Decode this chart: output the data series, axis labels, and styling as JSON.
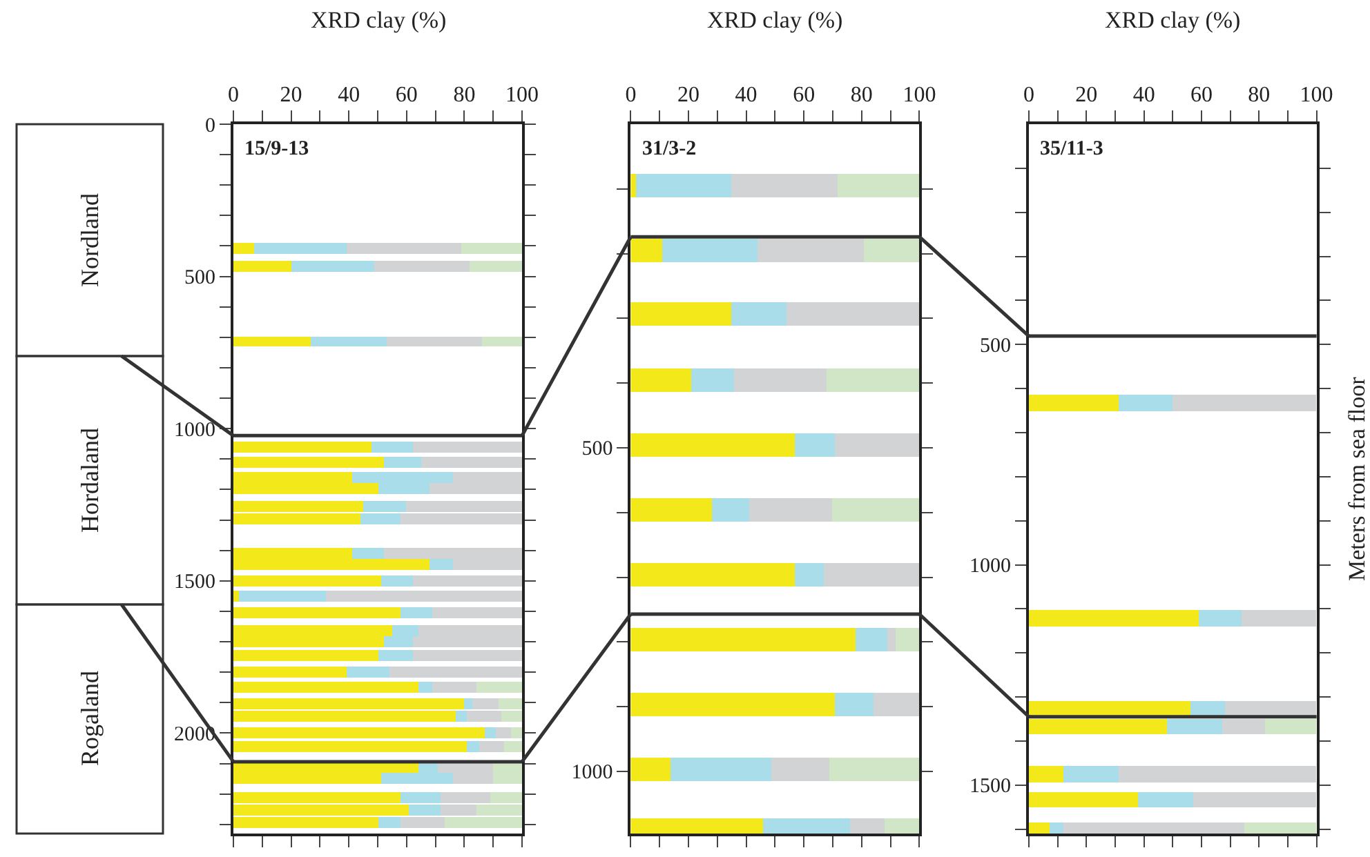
{
  "chart_data": [
    {
      "type": "bar",
      "orientation": "horizontal",
      "stacked": true,
      "title": "15/9-13",
      "xlabel": "XRD clay (%)",
      "annotations": [
        "Nordland",
        "Hordaland",
        "Rogaland"
      ],
      "x": [
        407,
        468,
        714,
        1060,
        1110,
        1160,
        1197,
        1256,
        1297,
        1409,
        1447,
        1500,
        1551,
        1603,
        1665,
        1701,
        1747,
        1799,
        1850,
        1902,
        1944,
        2000,
        2045,
        2112,
        2148,
        2214,
        2255,
        2292
      ],
      "series": [
        {
          "color": "#f2e81a",
          "values": [
            7,
            20,
            27,
            48,
            52,
            41,
            50,
            45,
            44,
            41,
            68,
            51,
            2,
            58,
            55,
            52,
            50,
            39,
            64,
            80,
            77,
            87,
            81,
            64,
            51,
            58,
            61,
            50
          ]
        },
        {
          "color": "#a8dde9",
          "values": [
            32,
            29,
            26,
            14,
            13,
            35,
            18,
            15,
            14,
            11,
            8,
            11,
            30,
            11,
            9,
            10,
            12,
            15,
            5,
            3,
            4,
            4,
            4,
            7,
            25,
            14,
            11,
            8
          ]
        },
        {
          "color": "#d2d3d5",
          "values": [
            40,
            33,
            33,
            38,
            35,
            24,
            32,
            40,
            42,
            48,
            24,
            38,
            68,
            31,
            36,
            38,
            38,
            46,
            15,
            9,
            12,
            5,
            9,
            19,
            14,
            17,
            12,
            15
          ]
        },
        {
          "color": "#d0e6c6",
          "values": [
            21,
            18,
            14,
            null,
            null,
            null,
            null,
            null,
            null,
            null,
            null,
            null,
            null,
            null,
            null,
            null,
            null,
            null,
            16,
            8,
            7,
            4,
            6,
            10,
            10,
            11,
            16,
            27
          ]
        }
      ],
      "xlim": [
        0,
        100
      ],
      "xticks": [
        0,
        {
          "value": 10,
          "label": null
        },
        20,
        {
          "value": 30,
          "label": null
        },
        40,
        {
          "value": 50,
          "label": null
        },
        60,
        {
          "value": 70,
          "label": null
        },
        80,
        {
          "value": 90,
          "label": null
        },
        100
      ],
      "ylim": [
        2330,
        0
      ],
      "yticks": [
        0,
        {
          "value": 100,
          "label": null
        },
        {
          "value": 200,
          "label": null
        },
        {
          "value": 300,
          "label": null
        },
        {
          "value": 400,
          "label": null
        },
        500,
        {
          "value": 600,
          "label": null
        },
        {
          "value": 700,
          "label": null
        },
        {
          "value": 800,
          "label": null
        },
        {
          "value": 900,
          "label": null
        },
        1000,
        {
          "value": 1100,
          "label": null
        },
        {
          "value": 1200,
          "label": null
        },
        {
          "value": 1300,
          "label": null
        },
        {
          "value": 1400,
          "label": null
        },
        1500,
        {
          "value": 1600,
          "label": null
        },
        {
          "value": 1700,
          "label": null
        },
        {
          "value": 1800,
          "label": null
        },
        {
          "value": 1900,
          "label": null
        },
        2000,
        {
          "value": 2100,
          "label": null
        },
        {
          "value": 2200,
          "label": null
        },
        {
          "value": 2300,
          "label": null
        }
      ],
      "ref_lines": [
        {
          "axis": "y",
          "value": 1023,
          "color": "#333333"
        },
        {
          "axis": "y",
          "value": 2094,
          "color": "#333333"
        }
      ]
    },
    {
      "type": "bar",
      "orientation": "horizontal",
      "stacked": true,
      "title": "31/3-2",
      "xlabel": "XRD clay (%)",
      "x": [
        94,
        196,
        294,
        396,
        495,
        596,
        696,
        796,
        896,
        997,
        1090
      ],
      "series": [
        {
          "color": "#f2e81a",
          "values": [
            2,
            11,
            35,
            21,
            57,
            28,
            57,
            78,
            71,
            14,
            46
          ]
        },
        {
          "color": "#a8dde9",
          "values": [
            33,
            33,
            19,
            15,
            14,
            13,
            10,
            11,
            13,
            35,
            30
          ]
        },
        {
          "color": "#d2d3d5",
          "values": [
            37,
            37,
            46,
            32,
            29,
            29,
            33,
            3,
            16,
            20,
            12
          ]
        },
        {
          "color": "#d0e6c6",
          "values": [
            28,
            19,
            null,
            32,
            null,
            30,
            null,
            8,
            null,
            31,
            12
          ]
        }
      ],
      "xlim": [
        0,
        100
      ],
      "xticks": [
        0,
        {
          "value": 10,
          "label": null
        },
        20,
        {
          "value": 30,
          "label": null
        },
        40,
        {
          "value": 50,
          "label": null
        },
        60,
        {
          "value": 70,
          "label": null
        },
        80,
        {
          "value": 90,
          "label": null
        },
        100
      ],
      "ylim": [
        1096,
        0
      ],
      "yticks": [
        {
          "value": 100,
          "label": null
        },
        {
          "value": 200,
          "label": null
        },
        {
          "value": 300,
          "label": null
        },
        {
          "value": 400,
          "label": null
        },
        500,
        {
          "value": 600,
          "label": null
        },
        {
          "value": 700,
          "label": null
        },
        {
          "value": 800,
          "label": null
        },
        {
          "value": 900,
          "label": null
        },
        1000
      ],
      "ref_lines": [
        {
          "axis": "y",
          "value": 174,
          "color": "#333333"
        },
        {
          "axis": "y",
          "value": 757,
          "color": "#333333"
        }
      ]
    },
    {
      "type": "bar",
      "orientation": "horizontal",
      "stacked": true,
      "title": "35/11-3",
      "xlabel": "XRD clay (%)",
      "ylabel": "Meters from sea floor",
      "x": [
        632,
        1121,
        1326,
        1368,
        1475,
        1534,
        1603
      ],
      "series": [
        {
          "color": "#f2e81a",
          "values": [
            31,
            59,
            56,
            48,
            12,
            38,
            7
          ]
        },
        {
          "color": "#a8dde9",
          "values": [
            19,
            15,
            12,
            19,
            19,
            19,
            5
          ]
        },
        {
          "color": "#d2d3d5",
          "values": [
            50,
            26,
            32,
            15,
            69,
            43,
            63
          ]
        },
        {
          "color": "#d0e6c6",
          "values": [
            null,
            null,
            null,
            18,
            null,
            null,
            25
          ]
        }
      ],
      "xlim": [
        0,
        100
      ],
      "xticks": [
        0,
        {
          "value": 10,
          "label": null
        },
        20,
        {
          "value": 30,
          "label": null
        },
        40,
        {
          "value": 50,
          "label": null
        },
        60,
        {
          "value": 70,
          "label": null
        },
        80,
        {
          "value": 90,
          "label": null
        },
        100
      ],
      "ylim": [
        1610,
        0
      ],
      "yticks": [
        {
          "value": 100,
          "label": null
        },
        {
          "value": 200,
          "label": null
        },
        {
          "value": 300,
          "label": null
        },
        {
          "value": 400,
          "label": null
        },
        500,
        {
          "value": 600,
          "label": null
        },
        {
          "value": 700,
          "label": null
        },
        {
          "value": 800,
          "label": null
        },
        {
          "value": 900,
          "label": null
        },
        1000,
        {
          "value": 1100,
          "label": null
        },
        {
          "value": 1200,
          "label": null
        },
        {
          "value": 1300,
          "label": null
        },
        {
          "value": 1400,
          "label": null
        },
        1500,
        {
          "value": 1600,
          "label": null
        }
      ],
      "ref_lines": [
        {
          "axis": "y",
          "value": 481,
          "color": "#333333"
        },
        {
          "axis": "y",
          "value": 1345,
          "color": "#333333"
        }
      ]
    }
  ]
}
